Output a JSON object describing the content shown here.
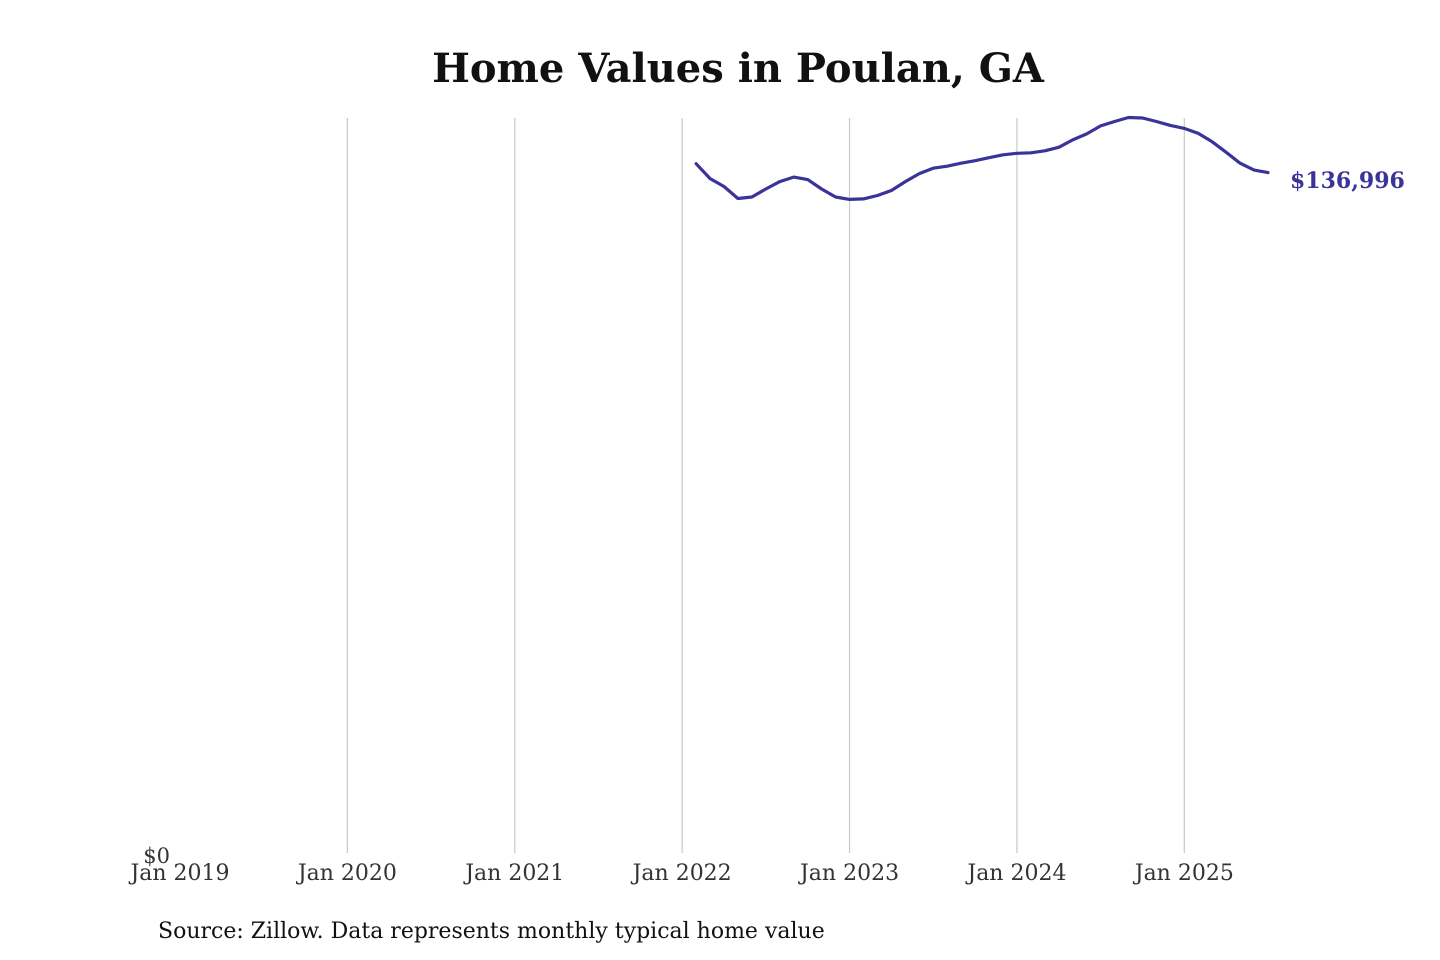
{
  "colors": {
    "line": "#3a3399",
    "grid": "#c8c8c8",
    "text": "#111111"
  },
  "chart_data": {
    "type": "line",
    "title": "Home Values in Poulan, GA",
    "source": "Source: Zillow. Data represents monthly typical home value",
    "y_tick_label": "$0",
    "end_label": "$136,996",
    "x_tick_labels": [
      "Jan 2019",
      "Jan 2020",
      "Jan 2021",
      "Jan 2022",
      "Jan 2023",
      "Jan 2024",
      "Jan 2025"
    ],
    "x_range": [
      "2019-01",
      "2025-07"
    ],
    "ylim": [
      0,
      148000
    ],
    "grid": "vertical",
    "series": [
      {
        "x": [
          "2022-02",
          "2022-03",
          "2022-04",
          "2022-05",
          "2022-06",
          "2022-07",
          "2022-08",
          "2022-09",
          "2022-10",
          "2022-11",
          "2022-12",
          "2023-01",
          "2023-02",
          "2023-03",
          "2023-04",
          "2023-05",
          "2023-06",
          "2023-07",
          "2023-08",
          "2023-09",
          "2023-10",
          "2023-11",
          "2023-12",
          "2024-01",
          "2024-02",
          "2024-03",
          "2024-04",
          "2024-05",
          "2024-06",
          "2024-07",
          "2024-08",
          "2024-09",
          "2024-10",
          "2024-11",
          "2024-12",
          "2025-01",
          "2025-02",
          "2025-03",
          "2025-04",
          "2025-05",
          "2025-06",
          "2025-07"
        ],
        "y": [
          138800,
          135800,
          134200,
          131800,
          132100,
          133700,
          135200,
          136100,
          135600,
          133700,
          132100,
          131600,
          131700,
          132400,
          133400,
          135200,
          136800,
          137900,
          138300,
          138900,
          139400,
          140000,
          140600,
          140900,
          141000,
          141400,
          142100,
          143600,
          144800,
          146400,
          147300,
          148100,
          148000,
          147300,
          146500,
          145900,
          144900,
          143200,
          141100,
          138900,
          137500,
          136996
        ]
      }
    ]
  }
}
